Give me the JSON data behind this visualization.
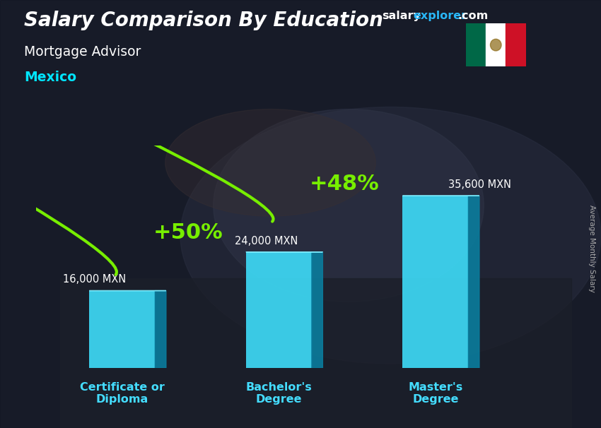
{
  "title": "Salary Comparison By Education",
  "subtitle": "Mortgage Advisor",
  "country": "Mexico",
  "watermark_salary": "salary",
  "watermark_explorer": "explorer",
  "watermark_com": ".com",
  "ylabel": "Average Monthly Salary",
  "categories": [
    "Certificate or\nDiploma",
    "Bachelor's\nDegree",
    "Master's\nDegree"
  ],
  "values": [
    16000,
    24000,
    35600
  ],
  "value_labels": [
    "16,000 MXN",
    "24,000 MXN",
    "35,600 MXN"
  ],
  "pct_labels": [
    "+50%",
    "+48%"
  ],
  "bar_face_color": "#3dd9f5",
  "bar_side_color": "#1ab8d8",
  "bar_dark_side": "#0a7fa0",
  "bar_top_color": "#7eeeff",
  "title_color": "#ffffff",
  "subtitle_color": "#ffffff",
  "country_color": "#00e5ff",
  "value_color": "#ffffff",
  "pct_color": "#77ee00",
  "arrow_color": "#77ee00",
  "watermark_color1": "#ffffff",
  "watermark_color2": "#29b6f6",
  "xtick_color": "#44ddff",
  "ylim": [
    0,
    46000
  ],
  "xlim": [
    -0.55,
    2.75
  ],
  "bar_width": 0.42,
  "bar_depth": 0.07,
  "flag_green": "#006847",
  "flag_white": "#ffffff",
  "flag_red": "#ce1126"
}
